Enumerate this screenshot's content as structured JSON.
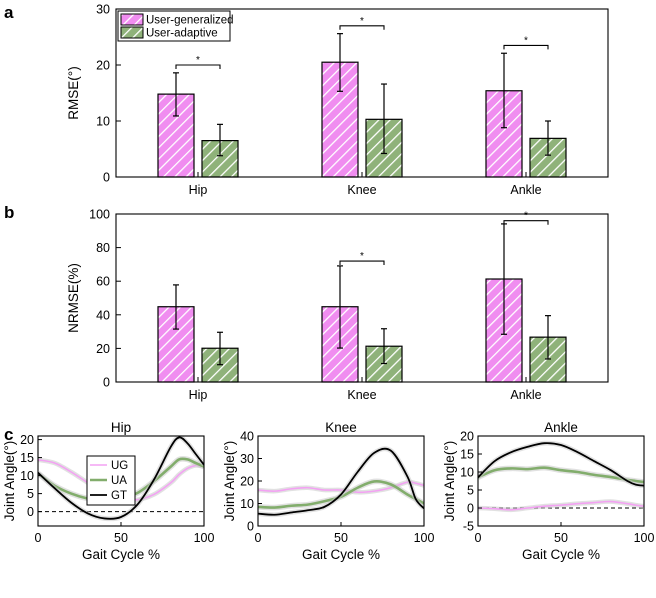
{
  "colors": {
    "ug_fill": "#f08df0",
    "ug_hatch": "#ffffff",
    "ua_fill": "#8fb27a",
    "ua_hatch": "#ffffff",
    "line_ug": "#f3a2f3",
    "line_ua": "#82ad6c",
    "line_gt": "#000000",
    "band": "#c8c8c8"
  },
  "chart_data": [
    {
      "panel": "a",
      "type": "bar",
      "categories": [
        "Hip",
        "Knee",
        "Ankle"
      ],
      "series": [
        {
          "name": "User-generalized",
          "values": [
            14.8,
            20.5,
            15.4
          ],
          "err_low": [
            10.9,
            15.3,
            8.8
          ],
          "err_high": [
            18.6,
            25.6,
            22.1
          ]
        },
        {
          "name": "User-adaptive",
          "values": [
            6.5,
            10.3,
            6.9
          ],
          "err_low": [
            3.8,
            4.2,
            3.9
          ],
          "err_high": [
            9.4,
            16.6,
            10.0
          ]
        }
      ],
      "ylabel": "RMSE(°)",
      "ylim": [
        0,
        30
      ],
      "yticks": [
        "0",
        "10",
        "20",
        "30"
      ],
      "significance": [
        {
          "category": "Hip",
          "y": 20,
          "label": "*"
        },
        {
          "category": "Knee",
          "y": 27,
          "label": "*"
        },
        {
          "category": "Ankle",
          "y": 23.5,
          "label": "*"
        }
      ],
      "legend": {
        "placement": "top-left",
        "entries": [
          "User-generalized",
          "User-adaptive"
        ]
      }
    },
    {
      "panel": "b",
      "type": "bar",
      "categories": [
        "Hip",
        "Knee",
        "Ankle"
      ],
      "series": [
        {
          "name": "User-generalized",
          "values": [
            44.8,
            44.8,
            61.3
          ],
          "err_low": [
            31.5,
            20.2,
            28.4
          ],
          "err_high": [
            57.8,
            69.1,
            94.1
          ]
        },
        {
          "name": "User-adaptive",
          "values": [
            20.1,
            21.3,
            26.7
          ],
          "err_low": [
            10.3,
            11.0,
            13.7
          ],
          "err_high": [
            29.6,
            31.7,
            39.5
          ]
        }
      ],
      "ylabel": "NRMSE(%)",
      "ylim": [
        0,
        100
      ],
      "yticks": [
        "0",
        "20",
        "40",
        "60",
        "80",
        "100"
      ],
      "significance": [
        {
          "category": "Knee",
          "y": 72,
          "label": "*"
        },
        {
          "category": "Ankle",
          "y": 96,
          "label": "*"
        }
      ]
    },
    {
      "panel": "c",
      "type": "line",
      "title": "Hip",
      "xlabel": "Gait Cycle %",
      "ylabel": "Joint Angle(°)",
      "xlim": [
        0,
        100
      ],
      "ylim": [
        -4,
        21
      ],
      "xticks": [
        "0",
        "50",
        "100"
      ],
      "yticks": [
        "0",
        "5",
        "10",
        "15",
        "20"
      ],
      "legend": {
        "placement": "top-left",
        "entries": [
          "UG",
          "UA",
          "GT"
        ]
      },
      "x": [
        0,
        10,
        20,
        30,
        40,
        50,
        60,
        70,
        80,
        85,
        90,
        95,
        100
      ],
      "series": [
        {
          "name": "UG",
          "values": [
            14.4,
            13.5,
            11.0,
            8.0,
            5.0,
            3.3,
            3.3,
            4.8,
            8.0,
            10.3,
            12.0,
            12.8,
            12.5
          ]
        },
        {
          "name": "UA",
          "values": [
            10.6,
            7.2,
            5.0,
            3.6,
            3.0,
            3.5,
            5.2,
            8.5,
            12.5,
            14.5,
            14.5,
            13.5,
            12.5
          ]
        },
        {
          "name": "GT",
          "values": [
            10.8,
            6.5,
            2.5,
            -0.5,
            -1.9,
            -1.5,
            2.0,
            9.0,
            18.0,
            20.6,
            19.0,
            16.0,
            13.0
          ]
        }
      ],
      "reference_line": 0
    },
    {
      "panel": "c",
      "type": "line",
      "title": "Knee",
      "xlabel": "Gait Cycle %",
      "ylabel": "Joint Angle(°)",
      "xlim": [
        0,
        100
      ],
      "ylim": [
        0,
        40
      ],
      "xticks": [
        "0",
        "50",
        "100"
      ],
      "yticks": [
        "0",
        "10",
        "20",
        "30",
        "40"
      ],
      "x": [
        0,
        10,
        20,
        30,
        40,
        50,
        60,
        70,
        80,
        90,
        95,
        100
      ],
      "series": [
        {
          "name": "UG",
          "values": [
            16,
            15.5,
            16.5,
            17,
            16,
            16,
            15,
            15.5,
            17,
            19.5,
            19,
            18
          ]
        },
        {
          "name": "UA",
          "values": [
            8.5,
            8.2,
            9,
            9.5,
            11,
            13,
            17,
            19.8,
            18.5,
            14,
            12,
            10
          ]
        },
        {
          "name": "GT",
          "values": [
            5.5,
            5,
            6,
            7,
            8.5,
            14,
            24,
            32.5,
            33.5,
            22,
            12,
            7.8
          ]
        }
      ]
    },
    {
      "panel": "c",
      "type": "line",
      "title": "Ankle",
      "xlabel": "Gait Cycle %",
      "ylabel": "Joint Angle(°)",
      "xlim": [
        0,
        100
      ],
      "ylim": [
        -5,
        20
      ],
      "xticks": [
        "0",
        "50",
        "100"
      ],
      "yticks": [
        "-5",
        "0",
        "5",
        "10",
        "15",
        "20"
      ],
      "x": [
        0,
        10,
        20,
        30,
        40,
        50,
        60,
        70,
        80,
        90,
        95,
        100
      ],
      "series": [
        {
          "name": "UG",
          "values": [
            0,
            -0.2,
            -0.5,
            0,
            0.5,
            0.8,
            1.2,
            1.5,
            1.8,
            1.2,
            0.8,
            0.5
          ]
        },
        {
          "name": "UA",
          "values": [
            8.5,
            10.5,
            11,
            10.8,
            11.2,
            10.5,
            10,
            9.2,
            8.6,
            7.8,
            7.5,
            7.2
          ]
        },
        {
          "name": "GT",
          "values": [
            8.5,
            13,
            15.5,
            17,
            18,
            17.5,
            15.5,
            13,
            10.5,
            7.5,
            6.5,
            6.2
          ]
        }
      ],
      "reference_line": 0
    }
  ]
}
